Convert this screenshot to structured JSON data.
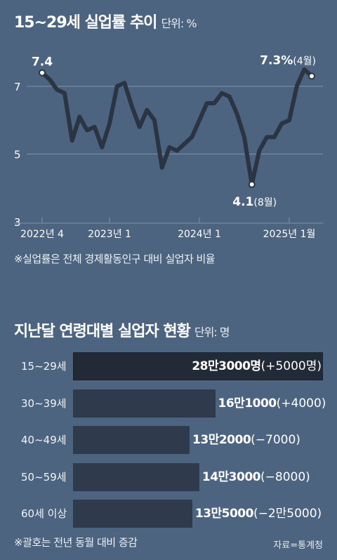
{
  "chart_data": [
    {
      "type": "line",
      "title": "15~29세 실업률 추이",
      "unit": "단위: %",
      "ylim": [
        3,
        8
      ],
      "y_ticks": [
        "3",
        "5",
        "7"
      ],
      "x_tick_labels": [
        "2022년 4",
        "2023년 1",
        "2024년 1",
        "2025년 1월"
      ],
      "grid": true,
      "x": [
        "2022-04",
        "2022-05",
        "2022-06",
        "2022-07",
        "2022-08",
        "2022-09",
        "2022-10",
        "2022-11",
        "2022-12",
        "2023-01",
        "2023-02",
        "2023-03",
        "2023-04",
        "2023-05",
        "2023-06",
        "2023-07",
        "2023-08",
        "2023-09",
        "2023-10",
        "2023-11",
        "2023-12",
        "2024-01",
        "2024-02",
        "2024-03",
        "2024-04",
        "2024-05",
        "2024-06",
        "2024-07",
        "2024-08",
        "2024-09",
        "2024-10",
        "2024-11",
        "2024-12",
        "2025-01",
        "2025-02",
        "2025-03",
        "2025-04"
      ],
      "values": [
        7.4,
        7.2,
        6.9,
        6.8,
        5.4,
        6.1,
        5.7,
        5.8,
        5.2,
        5.9,
        7.0,
        7.1,
        6.4,
        5.8,
        6.3,
        6.0,
        4.6,
        5.2,
        5.1,
        5.3,
        5.5,
        6.0,
        6.5,
        6.5,
        6.8,
        6.7,
        6.2,
        5.5,
        4.1,
        5.1,
        5.5,
        5.5,
        5.9,
        6.0,
        7.0,
        7.5,
        7.3
      ],
      "annotations": [
        {
          "x": "2022-04",
          "value_label": "7.4",
          "suffix": ""
        },
        {
          "x": "2024-08",
          "value_label": "4.1",
          "suffix": "(8월)"
        },
        {
          "x": "2025-04",
          "value_label": "7.3%",
          "suffix": "(4월)"
        }
      ],
      "footnote": "※실업률은 전체 경제활동인구 대비 실업자 비율"
    },
    {
      "type": "bar",
      "title": "지난달 연령대별 실업자 현황",
      "unit": "단위: 명",
      "categories": [
        "15~29세",
        "30~39세",
        "40~49세",
        "50~59세",
        "60세 이상"
      ],
      "values": [
        283000,
        161000,
        132000,
        143000,
        135000
      ],
      "value_labels": [
        "28만3000명",
        "16만1000",
        "13만2000",
        "14만3000",
        "13만5000"
      ],
      "change_labels": [
        "(+5000명)",
        "(+4000)",
        "(−7000)",
        "(−8000)",
        "(−2만5000)"
      ],
      "highlight_index": 0,
      "footnote": "※괄호는 전년 동월 대비 증감",
      "source": "자료=통계청"
    }
  ],
  "colors": {
    "background": "#4d6480",
    "line": "#2b3442",
    "bar": "#2f3b4d",
    "bar_highlight": "#212a36",
    "gridline": "#7f92a8"
  }
}
